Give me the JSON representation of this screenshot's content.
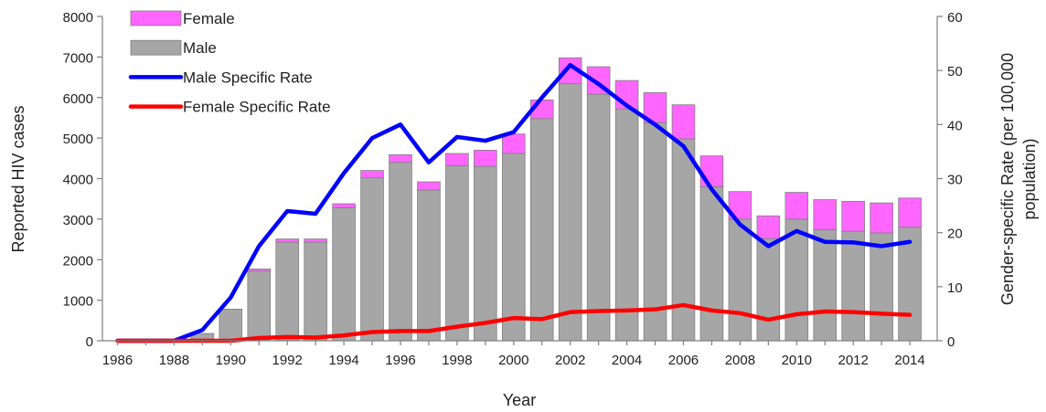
{
  "chart_data": {
    "type": "bar",
    "stacked": true,
    "title": "",
    "xlabel": "Year",
    "ylabel": "Reported HIV cases",
    "y2label_line1": "Gender-specific Rate (per 100,000",
    "y2label_line2": "population)",
    "ylim": [
      0,
      8000
    ],
    "y2lim": [
      0,
      60
    ],
    "yticks": [
      "0",
      "1000",
      "2000",
      "3000",
      "4000",
      "5000",
      "6000",
      "7000",
      "8000"
    ],
    "y2ticks": [
      "0",
      "10",
      "20",
      "30",
      "40",
      "50",
      "60"
    ],
    "x_tick_labels": [
      "1986",
      "1988",
      "1990",
      "1992",
      "1994",
      "1996",
      "1998",
      "2000",
      "2002",
      "2004",
      "2006",
      "2008",
      "2010",
      "2012",
      "2014"
    ],
    "grid": false,
    "legend_position": "top-left",
    "categories": [
      1986,
      1987,
      1988,
      1989,
      1990,
      1991,
      1992,
      1993,
      1994,
      1995,
      1996,
      1997,
      1998,
      1999,
      2000,
      2001,
      2002,
      2003,
      2004,
      2005,
      2006,
      2007,
      2008,
      2009,
      2010,
      2011,
      2012,
      2013,
      2014
    ],
    "series": [
      {
        "name": "Male",
        "kind": "bar",
        "color": "#a6a6a6",
        "values": [
          0,
          0,
          30,
          180,
          780,
          1720,
          2430,
          2430,
          3280,
          4020,
          4400,
          3720,
          4320,
          4300,
          4620,
          5480,
          6340,
          6080,
          5720,
          5380,
          4980,
          3800,
          3000,
          2520,
          3000,
          2740,
          2700,
          2660,
          2800
        ]
      },
      {
        "name": "Female",
        "kind": "bar",
        "color": "#ff66ff",
        "values": [
          0,
          0,
          0,
          0,
          0,
          50,
          80,
          80,
          100,
          180,
          190,
          200,
          300,
          400,
          480,
          460,
          640,
          680,
          700,
          740,
          840,
          760,
          680,
          560,
          660,
          740,
          740,
          740,
          720
        ]
      },
      {
        "name": "Male Specific Rate",
        "kind": "line",
        "axis": "right",
        "color": "#0000ff",
        "values": [
          0,
          0,
          0,
          2,
          8,
          17.5,
          24,
          23.5,
          31,
          37.5,
          40,
          33,
          37.7,
          37,
          38.6,
          45,
          51,
          47.5,
          43.5,
          40,
          36,
          28,
          21.5,
          17.5,
          20.3,
          18.3,
          18.2,
          17.5,
          18.3
        ]
      },
      {
        "name": "Female Specific Rate",
        "kind": "line",
        "axis": "right",
        "color": "#ff0000",
        "values": [
          0,
          0,
          0,
          0,
          0,
          0.5,
          0.7,
          0.6,
          1,
          1.6,
          1.8,
          1.8,
          2.6,
          3.3,
          4.2,
          4,
          5.3,
          5.5,
          5.6,
          5.8,
          6.6,
          5.6,
          5.1,
          3.9,
          4.9,
          5.4,
          5.3,
          5,
          4.8
        ]
      }
    ]
  }
}
